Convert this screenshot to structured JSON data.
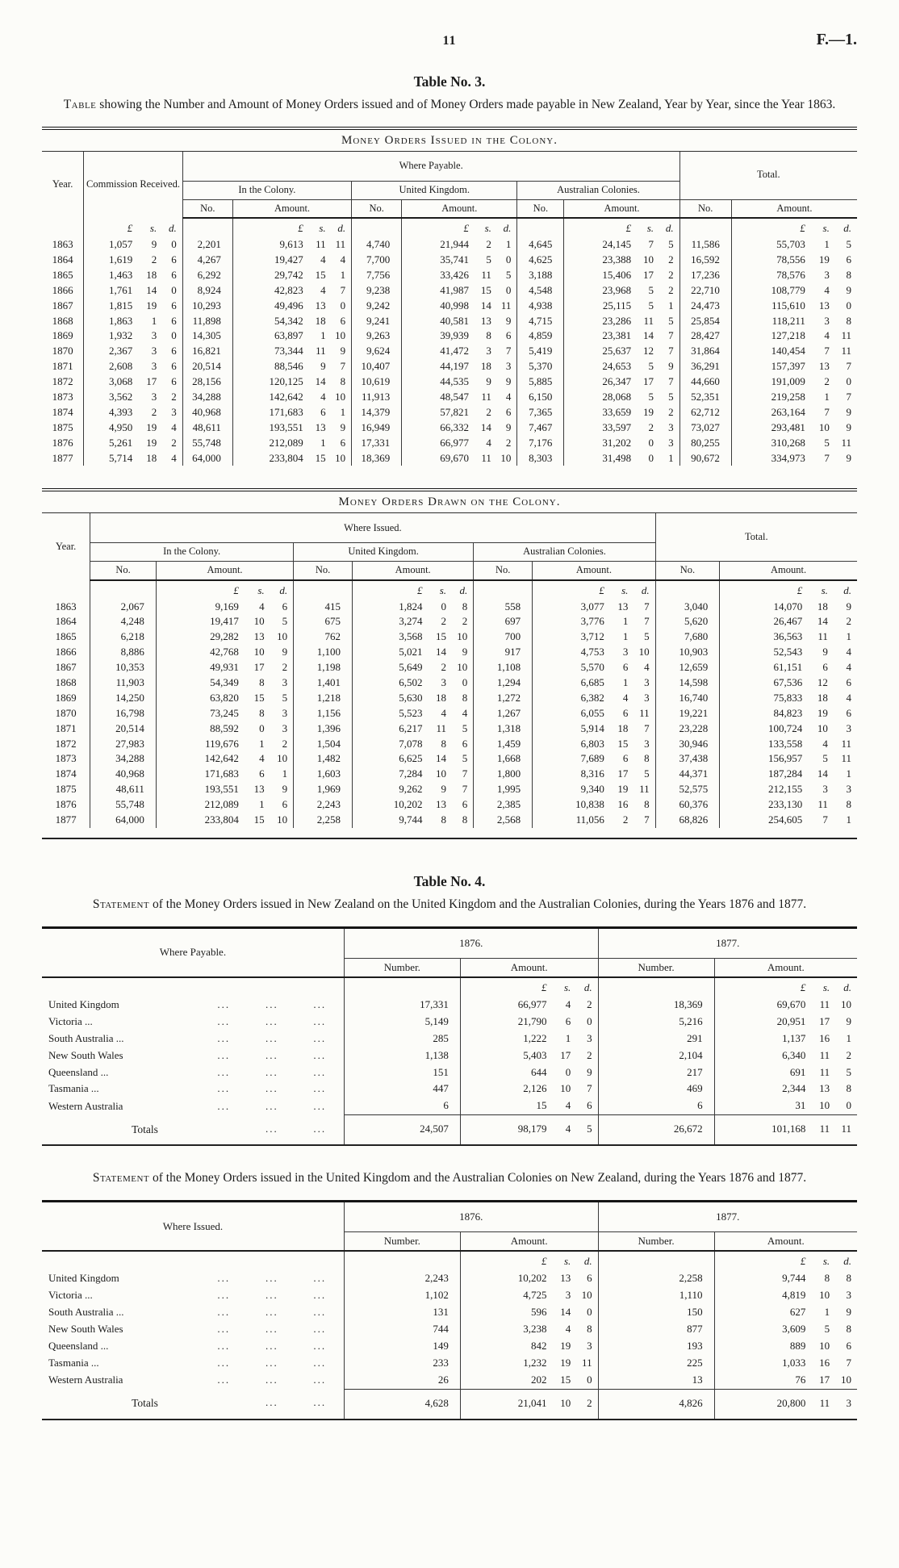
{
  "page": {
    "number": "11",
    "doc_ref": "F.—1."
  },
  "misc": {
    "dots": "..."
  },
  "units": {
    "pound": "£",
    "s": "s.",
    "d": "d."
  },
  "common": {
    "year": "Year.",
    "no": "No.",
    "amount": "Amount.",
    "number": "Number.",
    "total": "Total.",
    "in_the_colony": "In the Colony.",
    "united_kingdom": "United Kingdom.",
    "australian_colonies": "Australian Colonies."
  },
  "table3": {
    "title": "Table No. 3.",
    "caption_lead": "Table",
    "caption_rest": " showing the Number and Amount of Money Orders issued and of Money Orders made payable in New Zealand, Year by Year, since the Year 1863.",
    "issued": {
      "section_title": "Money Orders Issued in the Colony.",
      "commission": "Commission Received.",
      "where_payable": "Where Payable.",
      "rows": [
        [
          "1863",
          "1,057",
          "9",
          "0",
          "2,201",
          "9,613",
          "11",
          "11",
          "4,740",
          "21,944",
          "2",
          "1",
          "4,645",
          "24,145",
          "7",
          "5",
          "11,586",
          "55,703",
          "1",
          "5"
        ],
        [
          "1864",
          "1,619",
          "2",
          "6",
          "4,267",
          "19,427",
          "4",
          "4",
          "7,700",
          "35,741",
          "5",
          "0",
          "4,625",
          "23,388",
          "10",
          "2",
          "16,592",
          "78,556",
          "19",
          "6"
        ],
        [
          "1865",
          "1,463",
          "18",
          "6",
          "6,292",
          "29,742",
          "15",
          "1",
          "7,756",
          "33,426",
          "11",
          "5",
          "3,188",
          "15,406",
          "17",
          "2",
          "17,236",
          "78,576",
          "3",
          "8"
        ],
        [
          "1866",
          "1,761",
          "14",
          "0",
          "8,924",
          "42,823",
          "4",
          "7",
          "9,238",
          "41,987",
          "15",
          "0",
          "4,548",
          "23,968",
          "5",
          "2",
          "22,710",
          "108,779",
          "4",
          "9"
        ],
        [
          "1867",
          "1,815",
          "19",
          "6",
          "10,293",
          "49,496",
          "13",
          "0",
          "9,242",
          "40,998",
          "14",
          "11",
          "4,938",
          "25,115",
          "5",
          "1",
          "24,473",
          "115,610",
          "13",
          "0"
        ],
        [
          "1868",
          "1,863",
          "1",
          "6",
          "11,898",
          "54,342",
          "18",
          "6",
          "9,241",
          "40,581",
          "13",
          "9",
          "4,715",
          "23,286",
          "11",
          "5",
          "25,854",
          "118,211",
          "3",
          "8"
        ],
        [
          "1869",
          "1,932",
          "3",
          "0",
          "14,305",
          "63,897",
          "1",
          "10",
          "9,263",
          "39,939",
          "8",
          "6",
          "4,859",
          "23,381",
          "14",
          "7",
          "28,427",
          "127,218",
          "4",
          "11"
        ],
        [
          "1870",
          "2,367",
          "3",
          "6",
          "16,821",
          "73,344",
          "11",
          "9",
          "9,624",
          "41,472",
          "3",
          "7",
          "5,419",
          "25,637",
          "12",
          "7",
          "31,864",
          "140,454",
          "7",
          "11"
        ],
        [
          "1871",
          "2,608",
          "3",
          "6",
          "20,514",
          "88,546",
          "9",
          "7",
          "10,407",
          "44,197",
          "18",
          "3",
          "5,370",
          "24,653",
          "5",
          "9",
          "36,291",
          "157,397",
          "13",
          "7"
        ],
        [
          "1872",
          "3,068",
          "17",
          "6",
          "28,156",
          "120,125",
          "14",
          "8",
          "10,619",
          "44,535",
          "9",
          "9",
          "5,885",
          "26,347",
          "17",
          "7",
          "44,660",
          "191,009",
          "2",
          "0"
        ],
        [
          "1873",
          "3,562",
          "3",
          "2",
          "34,288",
          "142,642",
          "4",
          "10",
          "11,913",
          "48,547",
          "11",
          "4",
          "6,150",
          "28,068",
          "5",
          "5",
          "52,351",
          "219,258",
          "1",
          "7"
        ],
        [
          "1874",
          "4,393",
          "2",
          "3",
          "40,968",
          "171,683",
          "6",
          "1",
          "14,379",
          "57,821",
          "2",
          "6",
          "7,365",
          "33,659",
          "19",
          "2",
          "62,712",
          "263,164",
          "7",
          "9"
        ],
        [
          "1875",
          "4,950",
          "19",
          "4",
          "48,611",
          "193,551",
          "13",
          "9",
          "16,949",
          "66,332",
          "14",
          "9",
          "7,467",
          "33,597",
          "2",
          "3",
          "73,027",
          "293,481",
          "10",
          "9"
        ],
        [
          "1876",
          "5,261",
          "19",
          "2",
          "55,748",
          "212,089",
          "1",
          "6",
          "17,331",
          "66,977",
          "4",
          "2",
          "7,176",
          "31,202",
          "0",
          "3",
          "80,255",
          "310,268",
          "5",
          "11"
        ],
        [
          "1877",
          "5,714",
          "18",
          "4",
          "64,000",
          "233,804",
          "15",
          "10",
          "18,369",
          "69,670",
          "11",
          "10",
          "8,303",
          "31,498",
          "0",
          "1",
          "90,672",
          "334,973",
          "7",
          "9"
        ]
      ]
    },
    "drawn": {
      "section_title": "Money Orders Drawn on the Colony.",
      "where_issued": "Where Issued.",
      "rows": [
        [
          "1863",
          "2,067",
          "9,169",
          "4",
          "6",
          "415",
          "1,824",
          "0",
          "8",
          "558",
          "3,077",
          "13",
          "7",
          "3,040",
          "14,070",
          "18",
          "9"
        ],
        [
          "1864",
          "4,248",
          "19,417",
          "10",
          "5",
          "675",
          "3,274",
          "2",
          "2",
          "697",
          "3,776",
          "1",
          "7",
          "5,620",
          "26,467",
          "14",
          "2"
        ],
        [
          "1865",
          "6,218",
          "29,282",
          "13",
          "10",
          "762",
          "3,568",
          "15",
          "10",
          "700",
          "3,712",
          "1",
          "5",
          "7,680",
          "36,563",
          "11",
          "1"
        ],
        [
          "1866",
          "8,886",
          "42,768",
          "10",
          "9",
          "1,100",
          "5,021",
          "14",
          "9",
          "917",
          "4,753",
          "3",
          "10",
          "10,903",
          "52,543",
          "9",
          "4"
        ],
        [
          "1867",
          "10,353",
          "49,931",
          "17",
          "2",
          "1,198",
          "5,649",
          "2",
          "10",
          "1,108",
          "5,570",
          "6",
          "4",
          "12,659",
          "61,151",
          "6",
          "4"
        ],
        [
          "1868",
          "11,903",
          "54,349",
          "8",
          "3",
          "1,401",
          "6,502",
          "3",
          "0",
          "1,294",
          "6,685",
          "1",
          "3",
          "14,598",
          "67,536",
          "12",
          "6"
        ],
        [
          "1869",
          "14,250",
          "63,820",
          "15",
          "5",
          "1,218",
          "5,630",
          "18",
          "8",
          "1,272",
          "6,382",
          "4",
          "3",
          "16,740",
          "75,833",
          "18",
          "4"
        ],
        [
          "1870",
          "16,798",
          "73,245",
          "8",
          "3",
          "1,156",
          "5,523",
          "4",
          "4",
          "1,267",
          "6,055",
          "6",
          "11",
          "19,221",
          "84,823",
          "19",
          "6"
        ],
        [
          "1871",
          "20,514",
          "88,592",
          "0",
          "3",
          "1,396",
          "6,217",
          "11",
          "5",
          "1,318",
          "5,914",
          "18",
          "7",
          "23,228",
          "100,724",
          "10",
          "3"
        ],
        [
          "1872",
          "27,983",
          "119,676",
          "1",
          "2",
          "1,504",
          "7,078",
          "8",
          "6",
          "1,459",
          "6,803",
          "15",
          "3",
          "30,946",
          "133,558",
          "4",
          "11"
        ],
        [
          "1873",
          "34,288",
          "142,642",
          "4",
          "10",
          "1,482",
          "6,625",
          "14",
          "5",
          "1,668",
          "7,689",
          "6",
          "8",
          "37,438",
          "156,957",
          "5",
          "11"
        ],
        [
          "1874",
          "40,968",
          "171,683",
          "6",
          "1",
          "1,603",
          "7,284",
          "10",
          "7",
          "1,800",
          "8,316",
          "17",
          "5",
          "44,371",
          "187,284",
          "14",
          "1"
        ],
        [
          "1875",
          "48,611",
          "193,551",
          "13",
          "9",
          "1,969",
          "9,262",
          "9",
          "7",
          "1,995",
          "9,340",
          "19",
          "11",
          "52,575",
          "212,155",
          "3",
          "3"
        ],
        [
          "1876",
          "55,748",
          "212,089",
          "1",
          "6",
          "2,243",
          "10,202",
          "13",
          "6",
          "2,385",
          "10,838",
          "16",
          "8",
          "60,376",
          "233,130",
          "11",
          "8"
        ],
        [
          "1877",
          "64,000",
          "233,804",
          "15",
          "10",
          "2,258",
          "9,744",
          "8",
          "8",
          "2,568",
          "11,056",
          "2",
          "7",
          "68,826",
          "254,605",
          "7",
          "1"
        ]
      ]
    }
  },
  "table4": {
    "title": "Table No. 4.",
    "statement1": {
      "caption_lead": "Statement",
      "caption_rest": " of the Money Orders issued in New Zealand on the United Kingdom and the Australian Colonies, during the Years 1876 and 1877.",
      "col_where": "Where Payable.",
      "y1876": "1876.",
      "y1877": "1877.",
      "rows": [
        [
          "United Kingdom",
          "...",
          "...",
          "...",
          "17,331",
          "66,977",
          "4",
          "2",
          "18,369",
          "69,670",
          "11",
          "10"
        ],
        [
          "Victoria ...",
          "...",
          "...",
          "...",
          "5,149",
          "21,790",
          "6",
          "0",
          "5,216",
          "20,951",
          "17",
          "9"
        ],
        [
          "South Australia ...",
          "...",
          "...",
          "...",
          "285",
          "1,222",
          "1",
          "3",
          "291",
          "1,137",
          "16",
          "1"
        ],
        [
          "New South Wales",
          "...",
          "...",
          "...",
          "1,138",
          "5,403",
          "17",
          "2",
          "2,104",
          "6,340",
          "11",
          "2"
        ],
        [
          "Queensland ...",
          "...",
          "...",
          "...",
          "151",
          "644",
          "0",
          "9",
          "217",
          "691",
          "11",
          "5"
        ],
        [
          "Tasmania ...",
          "...",
          "...",
          "...",
          "447",
          "2,126",
          "10",
          "7",
          "469",
          "2,344",
          "13",
          "8"
        ],
        [
          "Western Australia",
          "...",
          "...",
          "...",
          "6",
          "15",
          "4",
          "6",
          "6",
          "31",
          "10",
          "0"
        ]
      ],
      "totals": {
        "label": "Totals",
        "no76": "24,507",
        "amt76": "98,179",
        "s76": "4",
        "d76": "5",
        "no77": "26,672",
        "amt77": "101,168",
        "s77": "11",
        "d77": "11"
      }
    },
    "statement2": {
      "caption_lead": "Statement",
      "caption_rest": " of the Money Orders issued in the United Kingdom and the Australian Colonies on New Zealand, during the Years 1876 and 1877.",
      "col_where": "Where Issued.",
      "y1876": "1876.",
      "y1877": "1877.",
      "rows": [
        [
          "United Kingdom",
          "...",
          "...",
          "...",
          "2,243",
          "10,202",
          "13",
          "6",
          "2,258",
          "9,744",
          "8",
          "8"
        ],
        [
          "Victoria ...",
          "...",
          "...",
          "...",
          "1,102",
          "4,725",
          "3",
          "10",
          "1,110",
          "4,819",
          "10",
          "3"
        ],
        [
          "South Australia ...",
          "...",
          "...",
          "...",
          "131",
          "596",
          "14",
          "0",
          "150",
          "627",
          "1",
          "9"
        ],
        [
          "New South Wales",
          "...",
          "...",
          "...",
          "744",
          "3,238",
          "4",
          "8",
          "877",
          "3,609",
          "5",
          "8"
        ],
        [
          "Queensland ...",
          "...",
          "...",
          "...",
          "149",
          "842",
          "19",
          "3",
          "193",
          "889",
          "10",
          "6"
        ],
        [
          "Tasmania ...",
          "...",
          "...",
          "...",
          "233",
          "1,232",
          "19",
          "11",
          "225",
          "1,033",
          "16",
          "7"
        ],
        [
          "Western Australia",
          "...",
          "...",
          "...",
          "26",
          "202",
          "15",
          "0",
          "13",
          "76",
          "17",
          "10"
        ]
      ],
      "totals": {
        "label": "Totals",
        "no76": "4,628",
        "amt76": "21,041",
        "s76": "10",
        "d76": "2",
        "no77": "4,826",
        "amt77": "20,800",
        "s77": "11",
        "d77": "3"
      }
    }
  }
}
